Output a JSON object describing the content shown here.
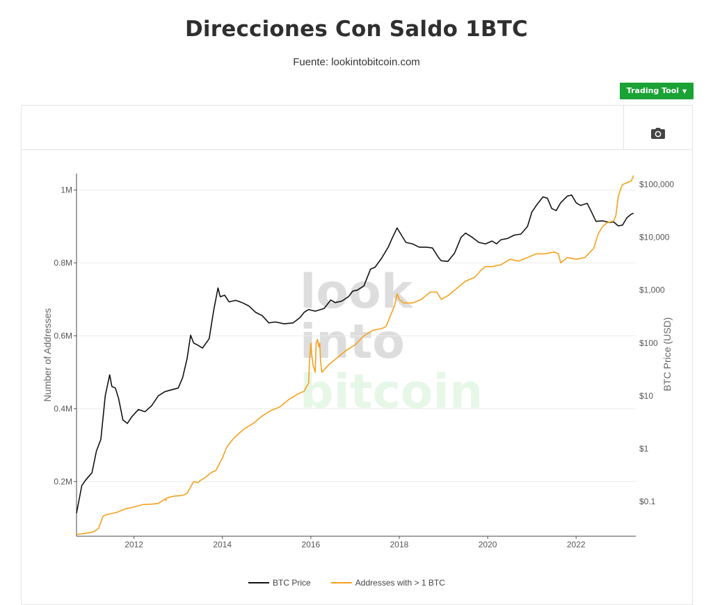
{
  "page": {
    "title": "Direcciones Con Saldo 1BTC",
    "subtitle": "Fuente: lookintobitcoin.com",
    "tool_button": "Trading Tool",
    "watermark": [
      "look",
      "into",
      "bitcoin"
    ],
    "camera_icon": "camera-icon",
    "colors": {
      "price": "#111111",
      "addresses": "#f5a01c",
      "button": "#1aa234",
      "watermark_gray": "#dddddd",
      "watermark_green": "#e6f7e8"
    }
  },
  "chart_data": {
    "type": "line",
    "title": "Direcciones Con Saldo 1BTC",
    "x_ticks": [
      "2012",
      "2014",
      "2016",
      "2018",
      "2020",
      "2022"
    ],
    "x_range": [
      2010.7,
      2023.35
    ],
    "y_left": {
      "label": "Number of Addresses",
      "range": [
        0.05,
        1.045
      ],
      "ticks": [
        0.2,
        0.4,
        0.6,
        0.8,
        1.0
      ],
      "tick_labels": [
        "0.2M",
        "0.4M",
        "0.6M",
        "0.8M",
        "1M"
      ]
    },
    "y_right": {
      "label": "BTC Price (USD)",
      "scale": "log",
      "range": [
        0.022,
        160000
      ],
      "ticks": [
        0.1,
        1,
        10,
        100,
        1000,
        10000,
        100000
      ],
      "tick_labels": [
        "$0.1",
        "$1",
        "$10",
        "$100",
        "$1,000",
        "$10,000",
        "$100,000"
      ]
    },
    "grid": true,
    "legend_position": "bottom-center",
    "series": [
      {
        "name": "BTC Price",
        "axis": "right",
        "color": "#111111",
        "x": [
          2010.7,
          2010.82,
          2010.9,
          2010.98,
          2011.05,
          2011.15,
          2011.25,
          2011.35,
          2011.45,
          2011.5,
          2011.58,
          2011.65,
          2011.75,
          2011.85,
          2011.95,
          2012.1,
          2012.25,
          2012.4,
          2012.55,
          2012.7,
          2012.85,
          2013.0,
          2013.1,
          2013.2,
          2013.28,
          2013.35,
          2013.45,
          2013.55,
          2013.7,
          2013.8,
          2013.9,
          2013.95,
          2014.05,
          2014.15,
          2014.3,
          2014.45,
          2014.6,
          2014.75,
          2014.9,
          2015.05,
          2015.2,
          2015.4,
          2015.6,
          2015.75,
          2015.85,
          2015.95,
          2016.1,
          2016.3,
          2016.45,
          2016.55,
          2016.7,
          2016.85,
          2016.95,
          2017.05,
          2017.2,
          2017.35,
          2017.45,
          2017.6,
          2017.75,
          2017.85,
          2017.95,
          2018.05,
          2018.15,
          2018.3,
          2018.45,
          2018.6,
          2018.75,
          2018.9,
          2018.95,
          2019.1,
          2019.25,
          2019.4,
          2019.5,
          2019.65,
          2019.8,
          2019.95,
          2020.1,
          2020.2,
          2020.3,
          2020.45,
          2020.6,
          2020.75,
          2020.9,
          2021.0,
          2021.1,
          2021.25,
          2021.35,
          2021.45,
          2021.55,
          2021.65,
          2021.8,
          2021.9,
          2022.0,
          2022.1,
          2022.25,
          2022.35,
          2022.45,
          2022.6,
          2022.75,
          2022.85,
          2022.95,
          2023.05,
          2023.15,
          2023.25,
          2023.3
        ],
        "y": [
          0.06,
          0.2,
          0.25,
          0.3,
          0.35,
          0.9,
          1.5,
          10,
          25,
          15,
          14,
          9,
          3.5,
          3,
          4,
          5.5,
          5,
          6.5,
          10,
          12,
          13,
          14,
          22,
          50,
          140,
          100,
          90,
          80,
          120,
          400,
          1100,
          750,
          800,
          600,
          640,
          580,
          500,
          380,
          330,
          240,
          250,
          230,
          240,
          300,
          380,
          430,
          400,
          450,
          650,
          580,
          620,
          750,
          960,
          1000,
          1200,
          2500,
          2700,
          4000,
          6500,
          10000,
          15000,
          11000,
          8000,
          7500,
          6500,
          6500,
          6300,
          4000,
          3600,
          3500,
          5000,
          10000,
          12000,
          10000,
          8000,
          7500,
          8500,
          7500,
          9000,
          9500,
          11000,
          11500,
          16000,
          30000,
          40000,
          58000,
          55000,
          35000,
          32000,
          45000,
          60000,
          63000,
          45000,
          40000,
          44000,
          30000,
          20000,
          20500,
          19000,
          19500,
          16500,
          17000,
          23500,
          27500,
          28500
        ]
      },
      {
        "name": "Addresses with > 1 BTC",
        "axis": "left",
        "color": "#f5a01c",
        "x": [
          2010.7,
          2010.85,
          2011.0,
          2011.1,
          2011.2,
          2011.3,
          2011.4,
          2011.6,
          2011.8,
          2012.0,
          2012.2,
          2012.4,
          2012.55,
          2012.7,
          2012.72,
          2012.74,
          2012.9,
          2013.1,
          2013.2,
          2013.35,
          2013.45,
          2013.5,
          2013.6,
          2013.75,
          2013.85,
          2014.0,
          2014.1,
          2014.25,
          2014.4,
          2014.5,
          2014.7,
          2014.9,
          2015.1,
          2015.3,
          2015.5,
          2015.7,
          2015.85,
          2015.9,
          2015.95,
          2015.97,
          2016.0,
          2016.02,
          2016.05,
          2016.1,
          2016.12,
          2016.15,
          2016.18,
          2016.2,
          2016.22,
          2016.25,
          2016.4,
          2016.6,
          2016.8,
          2017.0,
          2017.2,
          2017.4,
          2017.6,
          2017.7,
          2017.8,
          2017.9,
          2017.95,
          2018.0,
          2018.1,
          2018.3,
          2018.5,
          2018.7,
          2018.85,
          2018.95,
          2019.1,
          2019.3,
          2019.5,
          2019.7,
          2019.85,
          2019.95,
          2020.1,
          2020.3,
          2020.5,
          2020.7,
          2020.9,
          2021.1,
          2021.3,
          2021.5,
          2021.6,
          2021.65,
          2021.7,
          2021.8,
          2022.0,
          2022.2,
          2022.4,
          2022.5,
          2022.6,
          2022.7,
          2022.85,
          2022.9,
          2022.95,
          2023.0,
          2023.05,
          2023.15,
          2023.25,
          2023.3
        ],
        "y": [
          0.055,
          0.057,
          0.06,
          0.063,
          0.072,
          0.105,
          0.11,
          0.115,
          0.125,
          0.13,
          0.137,
          0.138,
          0.14,
          0.152,
          0.148,
          0.155,
          0.16,
          0.162,
          0.168,
          0.2,
          0.197,
          0.203,
          0.21,
          0.225,
          0.23,
          0.265,
          0.295,
          0.318,
          0.335,
          0.345,
          0.36,
          0.38,
          0.395,
          0.405,
          0.425,
          0.44,
          0.448,
          0.46,
          0.47,
          0.53,
          0.58,
          0.55,
          0.52,
          0.5,
          0.58,
          0.59,
          0.57,
          0.58,
          0.53,
          0.5,
          0.52,
          0.54,
          0.56,
          0.575,
          0.6,
          0.615,
          0.62,
          0.625,
          0.655,
          0.685,
          0.715,
          0.7,
          0.69,
          0.69,
          0.7,
          0.72,
          0.72,
          0.7,
          0.71,
          0.73,
          0.75,
          0.76,
          0.78,
          0.79,
          0.79,
          0.795,
          0.81,
          0.805,
          0.815,
          0.825,
          0.825,
          0.83,
          0.825,
          0.8,
          0.805,
          0.815,
          0.81,
          0.815,
          0.84,
          0.88,
          0.9,
          0.91,
          0.915,
          0.93,
          0.98,
          1.0,
          1.015,
          1.02,
          1.025,
          1.04
        ]
      }
    ]
  }
}
